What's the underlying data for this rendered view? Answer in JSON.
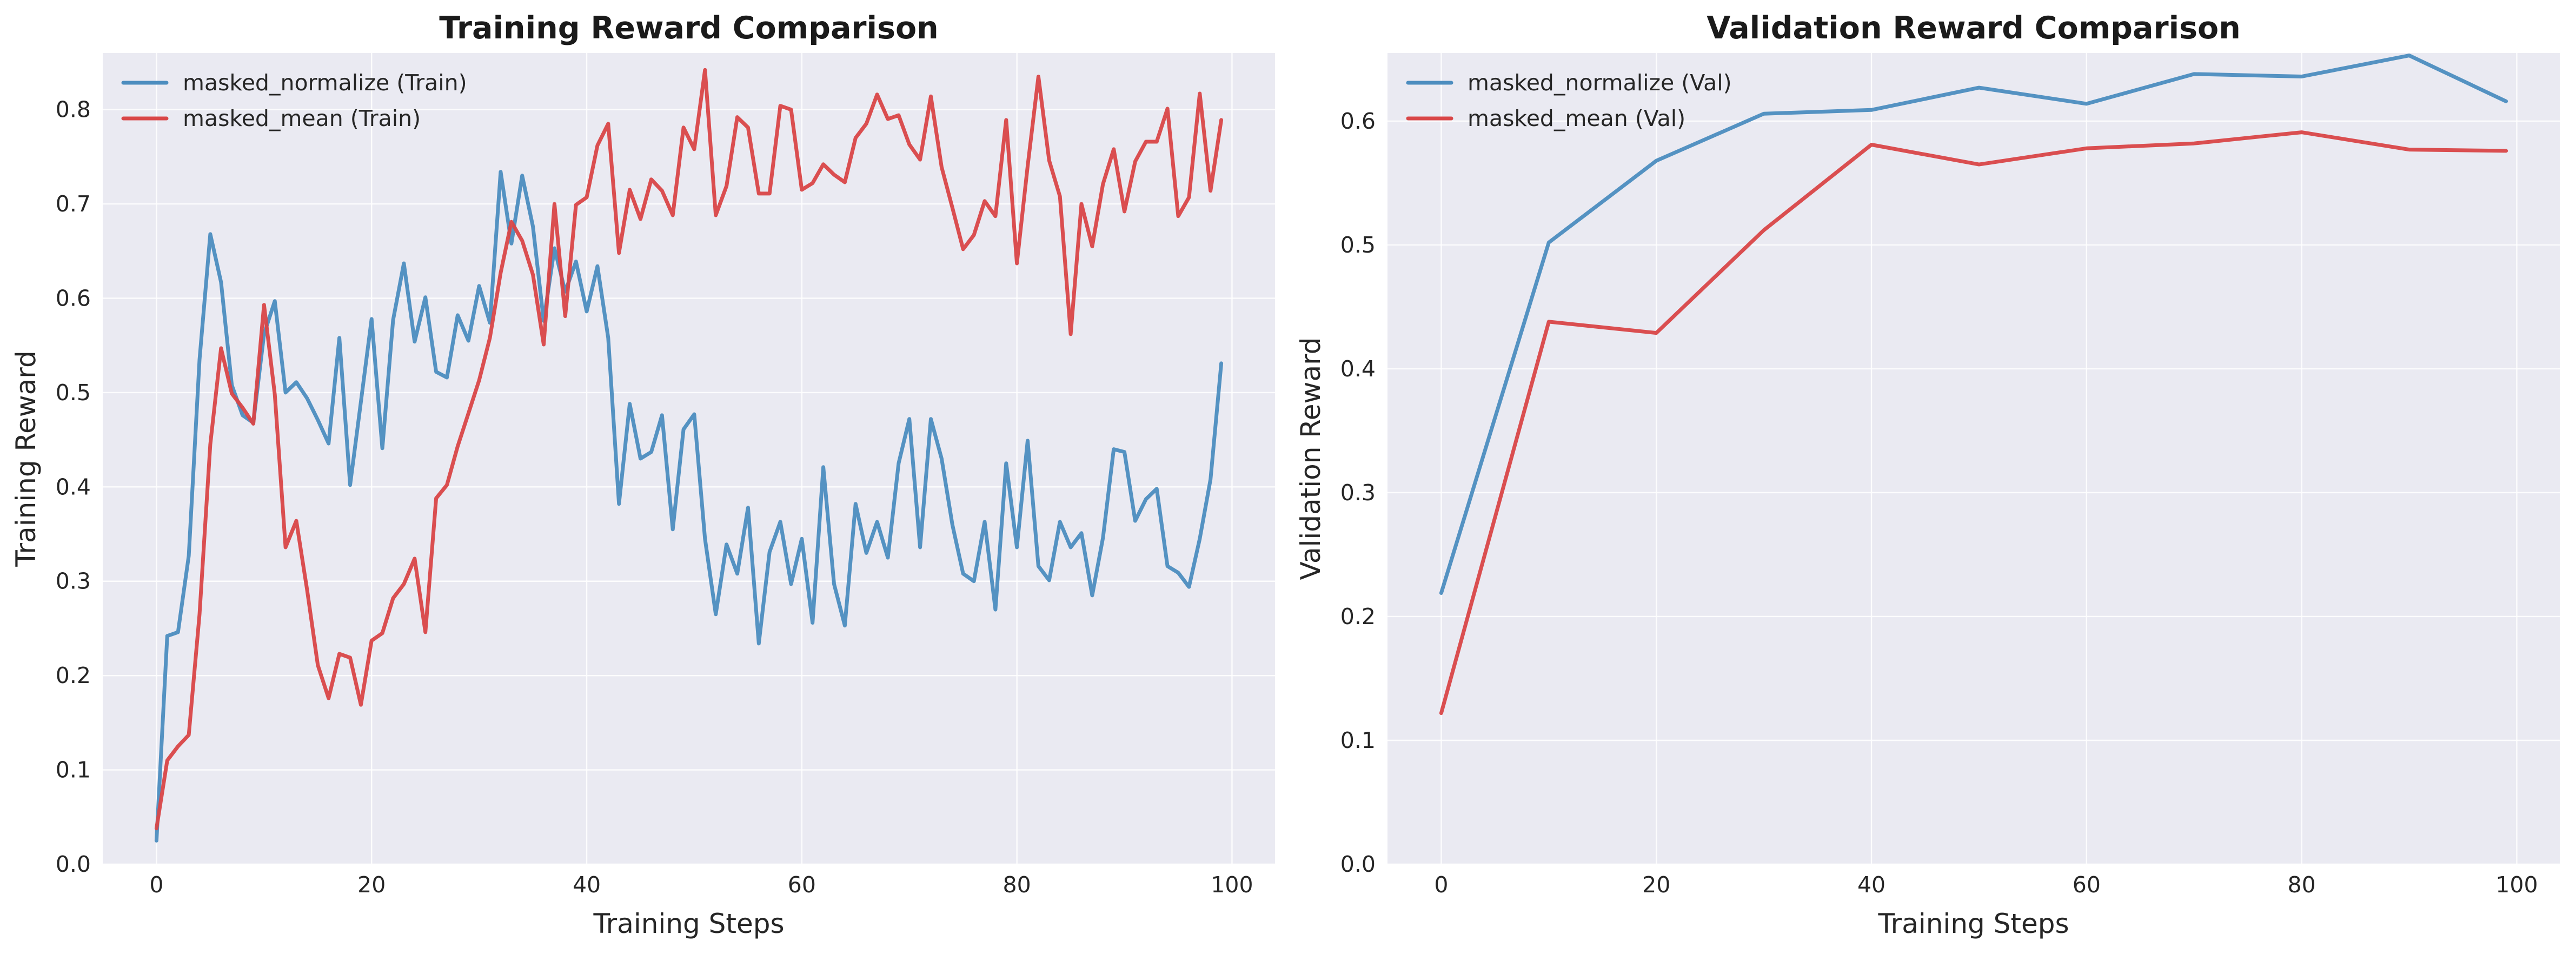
{
  "chart_data": [
    {
      "type": "line",
      "title": "Training Reward Comparison",
      "xlabel": "Training Steps",
      "ylabel": "Training Reward",
      "xlim": [
        -5,
        104
      ],
      "ylim": [
        0,
        0.86
      ],
      "xticks": [
        0,
        20,
        40,
        60,
        80,
        100
      ],
      "yticks": [
        0.0,
        0.1,
        0.2,
        0.3,
        0.4,
        0.5,
        0.6,
        0.7,
        0.8
      ],
      "ytick_format": 1,
      "grid": true,
      "legend": "upper-left",
      "series": [
        {
          "name": "masked_normalize (Train)",
          "color": "#4c8dbf",
          "x": [
            0,
            1,
            2,
            3,
            4,
            5,
            6,
            7,
            8,
            9,
            10,
            11,
            12,
            13,
            14,
            15,
            16,
            17,
            18,
            19,
            20,
            21,
            22,
            23,
            24,
            25,
            26,
            27,
            28,
            29,
            30,
            31,
            32,
            33,
            34,
            35,
            36,
            37,
            38,
            39,
            40,
            41,
            42,
            43,
            44,
            45,
            46,
            47,
            48,
            49,
            50,
            51,
            52,
            53,
            54,
            55,
            56,
            57,
            58,
            59,
            60,
            61,
            62,
            63,
            64,
            65,
            66,
            67,
            68,
            69,
            70,
            71,
            72,
            73,
            74,
            75,
            76,
            77,
            78,
            79,
            80,
            81,
            82,
            83,
            84,
            85,
            86,
            87,
            88,
            89,
            90,
            91,
            92,
            93,
            94,
            95,
            96,
            97,
            98,
            99
          ],
          "values": [
            0.025,
            0.242,
            0.246,
            0.327,
            0.535,
            0.668,
            0.617,
            0.508,
            0.476,
            0.468,
            0.562,
            0.597,
            0.5,
            0.511,
            0.494,
            0.471,
            0.446,
            0.558,
            0.402,
            0.49,
            0.578,
            0.441,
            0.577,
            0.637,
            0.554,
            0.601,
            0.522,
            0.516,
            0.582,
            0.555,
            0.613,
            0.574,
            0.734,
            0.658,
            0.73,
            0.676,
            0.576,
            0.653,
            0.607,
            0.639,
            0.586,
            0.634,
            0.558,
            0.382,
            0.488,
            0.43,
            0.437,
            0.476,
            0.355,
            0.461,
            0.477,
            0.345,
            0.265,
            0.339,
            0.308,
            0.378,
            0.234,
            0.331,
            0.363,
            0.297,
            0.345,
            0.256,
            0.421,
            0.297,
            0.253,
            0.382,
            0.33,
            0.363,
            0.325,
            0.425,
            0.472,
            0.336,
            0.472,
            0.43,
            0.36,
            0.308,
            0.3,
            0.363,
            0.27,
            0.425,
            0.336,
            0.449,
            0.316,
            0.301,
            0.363,
            0.336,
            0.351,
            0.285,
            0.346,
            0.44,
            0.437,
            0.364,
            0.387,
            0.398,
            0.316,
            0.309,
            0.294,
            0.345,
            0.408,
            0.531
          ]
        },
        {
          "name": "masked_mean (Train)",
          "color": "#d94647",
          "x": [
            0,
            1,
            2,
            3,
            4,
            5,
            6,
            7,
            8,
            9,
            10,
            11,
            12,
            13,
            14,
            15,
            16,
            17,
            18,
            19,
            20,
            21,
            22,
            23,
            24,
            25,
            26,
            27,
            28,
            29,
            30,
            31,
            32,
            33,
            34,
            35,
            36,
            37,
            38,
            39,
            40,
            41,
            42,
            43,
            44,
            45,
            46,
            47,
            48,
            49,
            50,
            51,
            52,
            53,
            54,
            55,
            56,
            57,
            58,
            59,
            60,
            61,
            62,
            63,
            64,
            65,
            66,
            67,
            68,
            69,
            70,
            71,
            72,
            73,
            74,
            75,
            76,
            77,
            78,
            79,
            80,
            81,
            82,
            83,
            84,
            85,
            86,
            87,
            88,
            89,
            90,
            91,
            92,
            93,
            94,
            95,
            96,
            97,
            98,
            99
          ],
          "values": [
            0.038,
            0.11,
            0.125,
            0.137,
            0.265,
            0.445,
            0.547,
            0.499,
            0.484,
            0.467,
            0.593,
            0.498,
            0.336,
            0.364,
            0.291,
            0.211,
            0.176,
            0.223,
            0.219,
            0.169,
            0.237,
            0.245,
            0.282,
            0.297,
            0.324,
            0.246,
            0.388,
            0.402,
            0.443,
            0.478,
            0.513,
            0.558,
            0.627,
            0.681,
            0.661,
            0.625,
            0.551,
            0.7,
            0.581,
            0.699,
            0.707,
            0.762,
            0.785,
            0.648,
            0.715,
            0.684,
            0.726,
            0.714,
            0.688,
            0.781,
            0.758,
            0.842,
            0.688,
            0.719,
            0.792,
            0.781,
            0.711,
            0.711,
            0.804,
            0.8,
            0.715,
            0.722,
            0.742,
            0.731,
            0.723,
            0.77,
            0.785,
            0.816,
            0.79,
            0.794,
            0.763,
            0.747,
            0.814,
            0.739,
            0.696,
            0.652,
            0.667,
            0.703,
            0.687,
            0.789,
            0.637,
            0.74,
            0.835,
            0.746,
            0.708,
            0.562,
            0.7,
            0.655,
            0.721,
            0.758,
            0.692,
            0.745,
            0.766,
            0.766,
            0.801,
            0.687,
            0.707,
            0.817,
            0.714,
            0.789
          ]
        }
      ]
    },
    {
      "type": "line",
      "title": "Validation Reward Comparison",
      "xlabel": "Training Steps",
      "ylabel": "Validation Reward",
      "xlim": [
        -5,
        104
      ],
      "ylim": [
        0,
        0.655
      ],
      "xticks": [
        0,
        20,
        40,
        60,
        80,
        100
      ],
      "yticks": [
        0.0,
        0.1,
        0.2,
        0.3,
        0.4,
        0.5,
        0.6
      ],
      "ytick_format": 1,
      "grid": true,
      "legend": "upper-left",
      "series": [
        {
          "name": "masked_normalize (Val)",
          "color": "#4c8dbf",
          "x": [
            0,
            10,
            20,
            30,
            40,
            50,
            60,
            70,
            80,
            90,
            99
          ],
          "values": [
            0.219,
            0.502,
            0.568,
            0.606,
            0.609,
            0.627,
            0.614,
            0.638,
            0.636,
            0.653,
            0.616
          ]
        },
        {
          "name": "masked_mean (Val)",
          "color": "#d94647",
          "x": [
            0,
            10,
            20,
            30,
            40,
            50,
            60,
            70,
            80,
            90,
            99
          ],
          "values": [
            0.122,
            0.438,
            0.429,
            0.512,
            0.581,
            0.565,
            0.578,
            0.582,
            0.591,
            0.577,
            0.576
          ]
        }
      ]
    }
  ]
}
